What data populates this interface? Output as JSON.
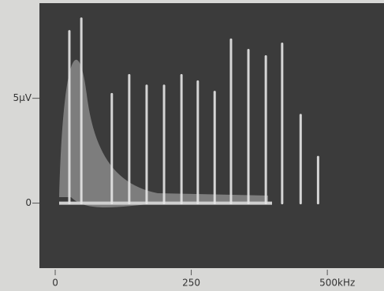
{
  "chart_data": {
    "type": "stem",
    "x": [
      26,
      48,
      104,
      136,
      168,
      200,
      232,
      262,
      293,
      323,
      355,
      387,
      417,
      451,
      483
    ],
    "values": [
      8.2,
      8.8,
      5.2,
      6.1,
      5.6,
      5.6,
      6.1,
      5.8,
      5.3,
      7.8,
      7.3,
      7.0,
      7.6,
      4.2,
      2.2
    ],
    "color": "#e6e6e6",
    "xlim": [
      -29,
      594
    ],
    "ylim": [
      -3.1,
      9.5
    ],
    "xticks": [
      0,
      250,
      {
        "value": 500,
        "label": "500kHz"
      }
    ],
    "yticks": [
      0,
      {
        "value": 5,
        "label": "5µV"
      }
    ]
  }
}
